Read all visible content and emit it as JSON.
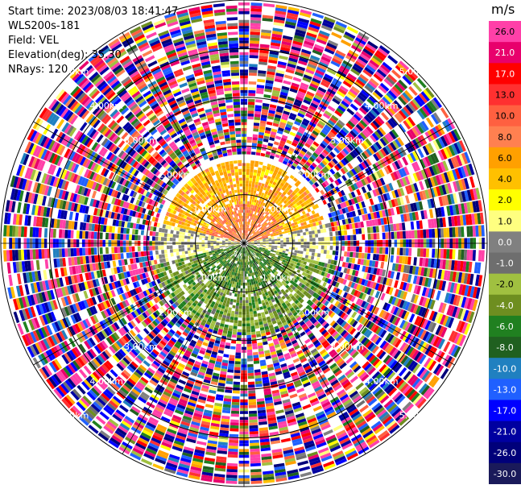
{
  "header": {
    "start_time": "Start time: 2023/08/03 18:41:47",
    "instrument": "WLS200s-181",
    "field": "Field: VEL",
    "elevation": "Elevation(deg): 35.30",
    "nrays": "NRays: 120"
  },
  "colorbar": {
    "unit": "m/s",
    "ticks": [
      "26.0",
      "21.0",
      "17.0",
      "13.0",
      "10.0",
      "8.0",
      "6.0",
      "4.0",
      "2.0",
      "1.0",
      "0.0",
      "-1.0",
      "-2.0",
      "-4.0",
      "-6.0",
      "-8.0",
      "-10.0",
      "-13.0",
      "-17.0",
      "-21.0",
      "-26.0",
      "-30.0"
    ],
    "colors": [
      "#ff40a8",
      "#e8006c",
      "#ff0000",
      "#ff3030",
      "#ff6040",
      "#ff8050",
      "#ffa000",
      "#ffc000",
      "#ffff00",
      "#ffff80",
      "#808080",
      "#6e6e6e",
      "#a0c040",
      "#6e8e20",
      "#208020",
      "#206020",
      "#2080c0",
      "#2060ff",
      "#0000ff",
      "#0000a0",
      "#00007a",
      "#1a1a5a"
    ]
  },
  "chart_data": {
    "type": "heatmap",
    "field": "VEL",
    "unit": "m/s",
    "elevation_deg": 35.3,
    "nrays": 120,
    "range_rings_km": [
      1.0,
      2.0,
      3.0,
      4.0,
      5.0
    ],
    "range_labels": [
      "1.00km",
      "2.00km",
      "3.00km",
      "4.00km",
      "5.00km"
    ],
    "vmin": -30.0,
    "vmax": 26.0,
    "sectors": [
      {
        "azimuth_range_deg": [
          -75,
          75
        ],
        "range_km": [
          0.2,
          1.6
        ],
        "typical_velocity_ms": 3.0
      },
      {
        "azimuth_range_deg": [
          105,
          255
        ],
        "range_km": [
          0.2,
          1.8
        ],
        "typical_velocity_ms": -5.0
      },
      {
        "azimuth_range_deg": [
          0,
          360
        ],
        "range_km": [
          2.0,
          5.0
        ],
        "typical_velocity_ms": null
      }
    ]
  }
}
